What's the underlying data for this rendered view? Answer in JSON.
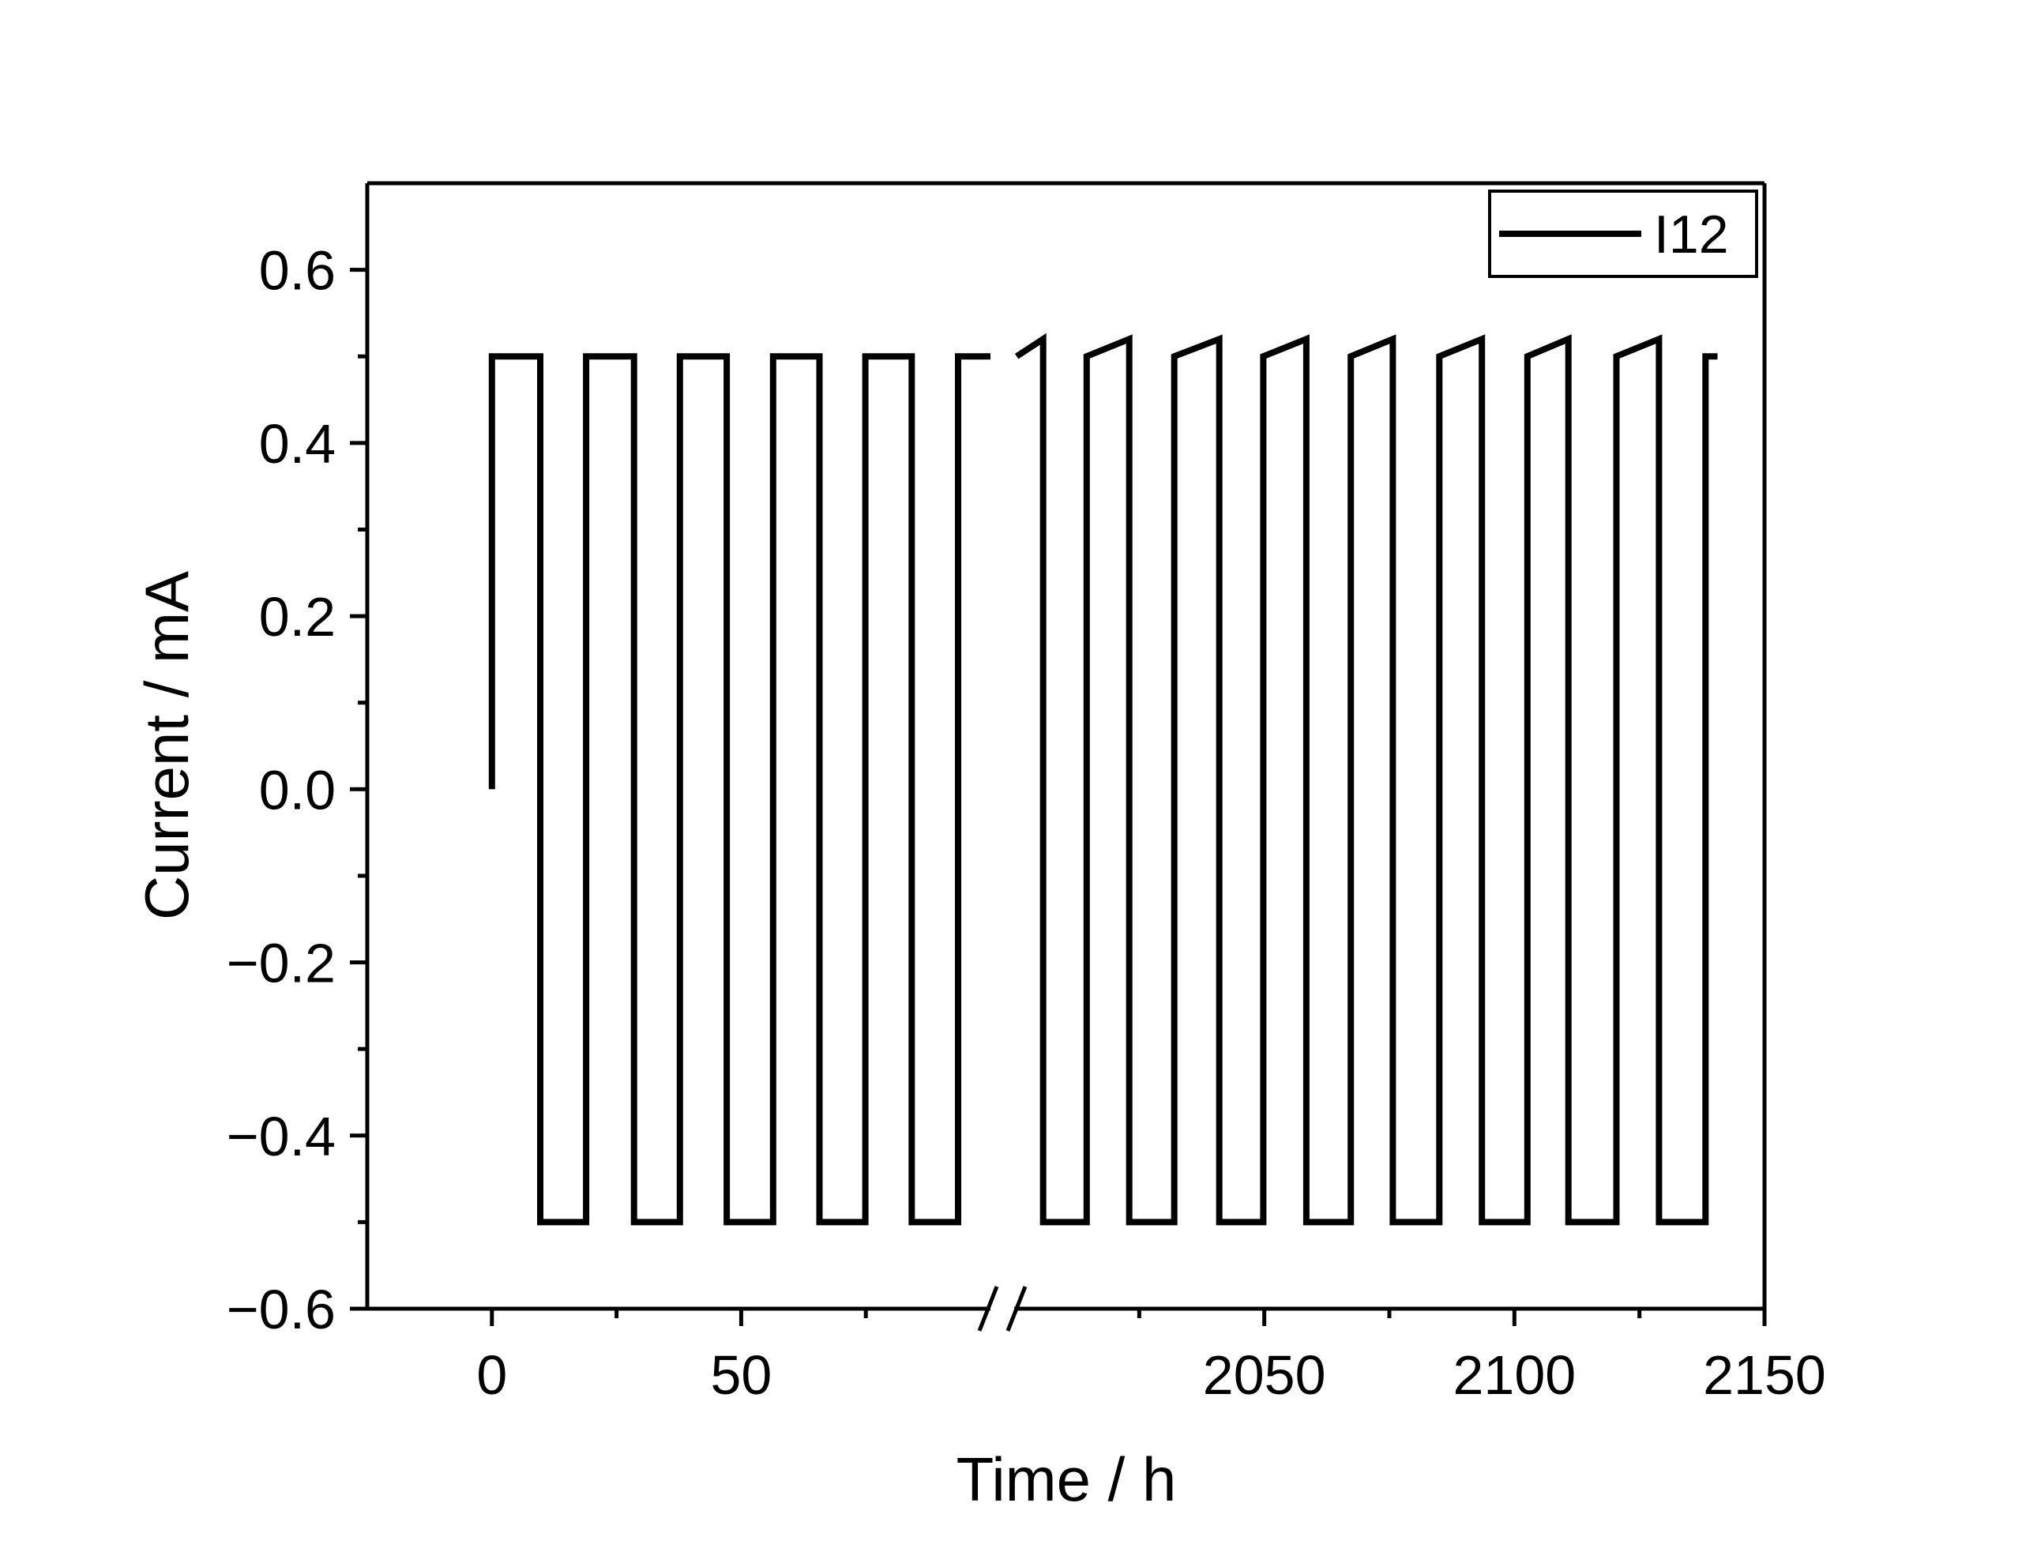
{
  "chart_data": {
    "type": "line",
    "x_label": "Time / h",
    "y_label": "Current / mA",
    "xlim": [
      -25,
      2150
    ],
    "x_breaks": [
      100,
      2000
    ],
    "ylim": [
      -0.6,
      0.7
    ],
    "xticks": [
      0,
      50,
      2050,
      2100,
      2150
    ],
    "x_minor_ticks": [
      25,
      75,
      2025,
      2075,
      2125
    ],
    "yticks": [
      {
        "value": -0.6,
        "label": "−0.6"
      },
      {
        "value": -0.4,
        "label": "−0.4"
      },
      {
        "value": -0.2,
        "label": "−0.2"
      },
      {
        "value": 0,
        "label": "0.0"
      },
      0.2,
      0.4,
      0.6
    ],
    "y_minor_ticks": [
      -0.5,
      -0.3,
      -0.1,
      0.1,
      0.3,
      0.5
    ],
    "legend": "upper right",
    "series": [
      {
        "name": "I12",
        "color": "#000000",
        "x": [
          0,
          0,
          9.7,
          9.7,
          18.9,
          18.9,
          28.5,
          28.5,
          37.7,
          37.7,
          47.1,
          47.1,
          56.4,
          56.4,
          65.7,
          65.7,
          74.9,
          74.9,
          84.2,
          84.2,
          93.5,
          93.5,
          100,
          null,
          2000.5,
          2005.8,
          2005.8,
          2014.5,
          2014.5,
          2023,
          2023,
          2032,
          2032,
          2041,
          2041,
          2049.8,
          2049.8,
          2058.4,
          2058.4,
          2067.3,
          2067.3,
          2075.7,
          2075.7,
          2085,
          2085,
          2093.5,
          2093.5,
          2102.6,
          2102.6,
          2110.8,
          2110.8,
          2120.4,
          2120.4,
          2128.9,
          2128.9,
          2138.2,
          2138.2,
          2140.6
        ],
        "values": [
          0,
          0.5,
          0.5,
          -0.5,
          -0.5,
          0.5,
          0.5,
          -0.5,
          -0.5,
          0.5,
          0.5,
          -0.5,
          -0.5,
          0.5,
          0.5,
          -0.5,
          -0.5,
          0.5,
          0.5,
          -0.5,
          -0.5,
          0.5,
          0.5,
          null,
          0.5,
          0.52,
          -0.5,
          -0.5,
          0.5,
          0.52,
          -0.5,
          -0.5,
          0.5,
          0.52,
          -0.5,
          -0.5,
          0.5,
          0.52,
          -0.5,
          -0.5,
          0.5,
          0.52,
          -0.5,
          -0.5,
          0.5,
          0.52,
          -0.5,
          -0.5,
          0.5,
          0.52,
          -0.5,
          -0.5,
          0.5,
          0.52,
          -0.5,
          -0.5,
          0.5,
          0.5
        ]
      }
    ]
  }
}
